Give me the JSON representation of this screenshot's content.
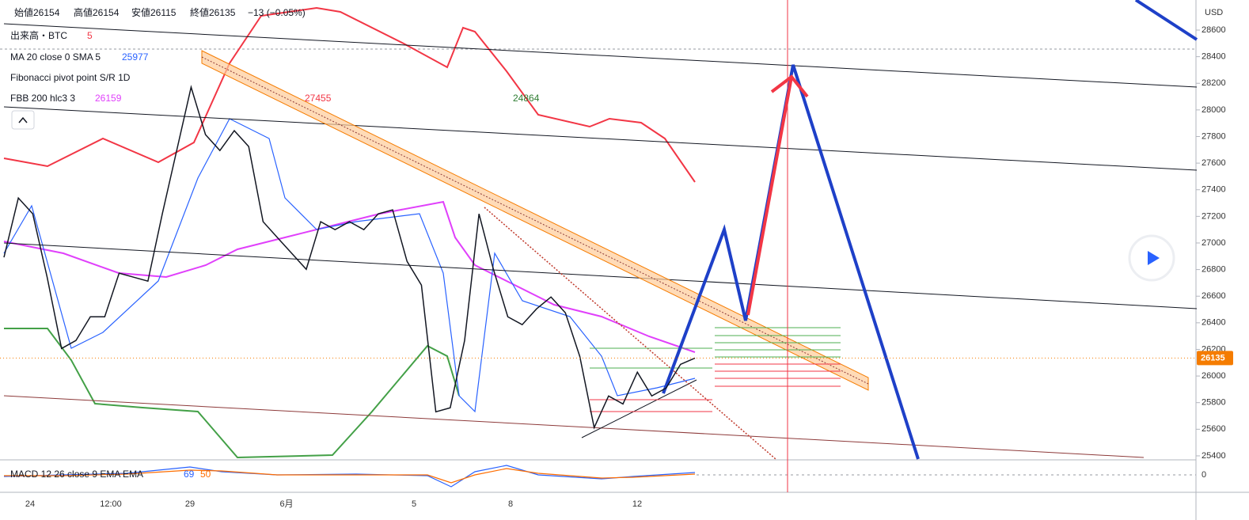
{
  "header": [
    "始値26154",
    "高値26154",
    "安値26115",
    "終値26135",
    "−13 (−0.05%)"
  ],
  "legend": {
    "volume": "出来高・BTC",
    "volume_value": "5",
    "ma": "MA 20 close 0 SMA 5",
    "ma_value": "25977",
    "pivot": "Fibonacci pivot point S/R 1D",
    "fbb": "FBB 200 hlc3 3",
    "fbb_value": "26159",
    "macd": "MACD 12 26 close 9 EMA EMA",
    "macd_value1": "69",
    "macd_value2": "50",
    "pivot_r": "27455",
    "pivot_s": "24864"
  },
  "chart_data": {
    "type": "line",
    "currency": "USD",
    "x_labels": [
      "24",
      "12:00",
      "29",
      "6月",
      "5",
      "8",
      "12"
    ],
    "series": [
      {
        "color": "#131722",
        "values": [
          26892,
          27338,
          27219,
          26743,
          26207,
          26267,
          26445,
          26445,
          26773,
          26743,
          26713,
          27219,
          27695,
          28171,
          27814,
          27695,
          27844,
          27725,
          27160,
          27040,
          26921,
          26802,
          27160,
          27100,
          27160,
          27100,
          27219,
          27249,
          26862,
          26683,
          25731,
          25761,
          26267,
          27219,
          26802,
          26445,
          26386,
          26505,
          26594,
          26475,
          26148,
          25612,
          25850,
          25790,
          26029,
          25850,
          25910,
          26088,
          26135
        ]
      }
    ],
    "ylim": [
      25370,
      28826
    ],
    "yticks": [
      25400,
      25600,
      25800,
      26000,
      26200,
      26400,
      26600,
      26800,
      27000,
      27200,
      27400,
      27600,
      27800,
      28000,
      28200,
      28400,
      28600
    ],
    "last_price": 26135,
    "last_price_color": "#f57c00",
    "macd_yticks": [
      0
    ]
  }
}
